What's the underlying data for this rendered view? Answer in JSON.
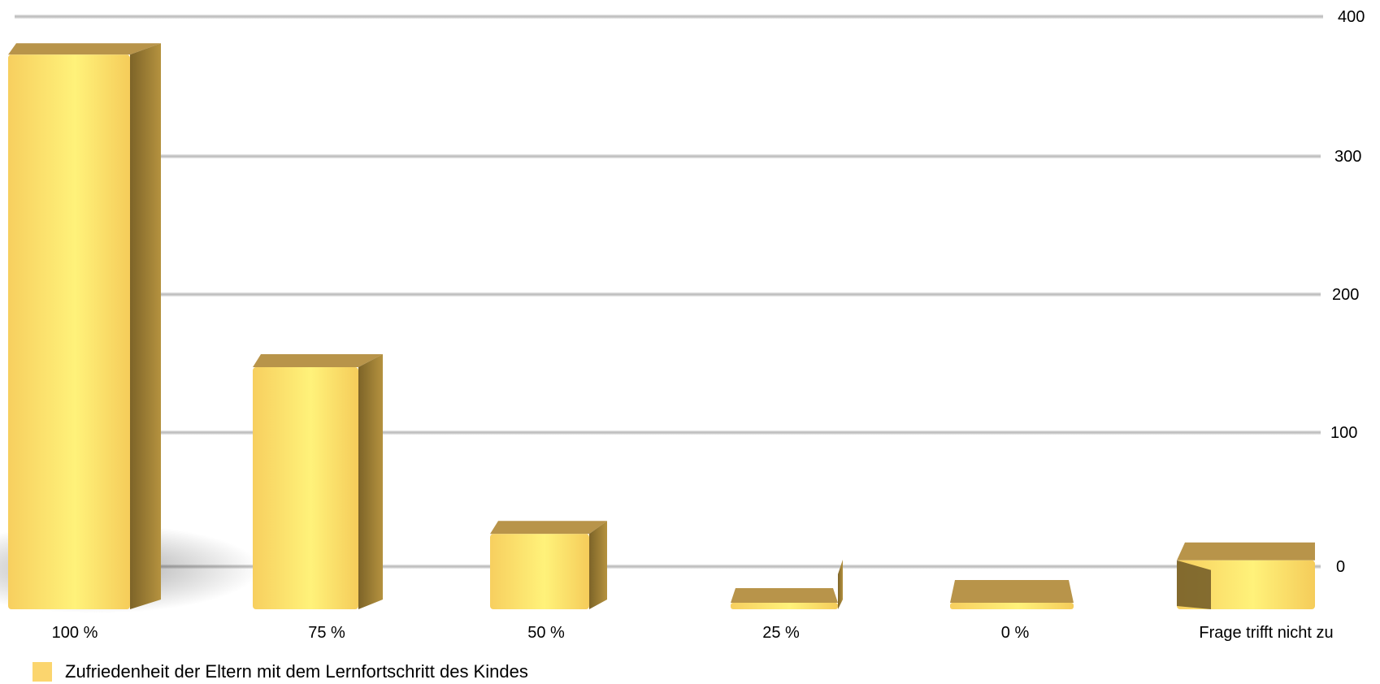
{
  "chart_data": {
    "type": "bar",
    "categories": [
      "100 %",
      "75 %",
      "50 %",
      "25 %",
      "0 %",
      "Frage trifft nicht zu"
    ],
    "series": [
      {
        "name": "Zufriedenheit der Eltern mit dem Lernfortschritt des Kindes",
        "values": [
          370,
          145,
          25,
          -4,
          -8,
          6
        ]
      }
    ],
    "ylim": [
      0,
      400
    ],
    "yticks": [
      "0",
      "100",
      "200",
      "300",
      "400"
    ],
    "grid": true,
    "legend_position": "bottom-left",
    "style": "3d",
    "colors": {
      "bar_front": "#fbd56e",
      "bar_highlight": "#fff27a",
      "bar_side": "#9a7f3a",
      "bar_top": "#b8944a",
      "grid": "#c2c2c2"
    }
  }
}
